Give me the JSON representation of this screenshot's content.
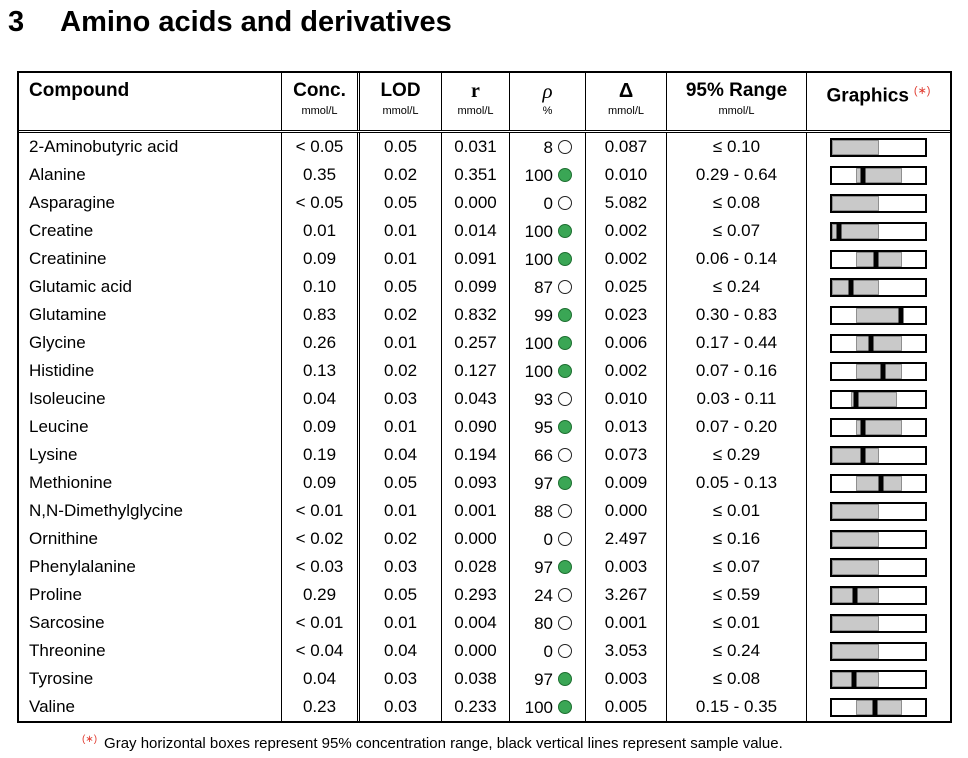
{
  "title": {
    "number": "3",
    "text": "Amino acids and derivatives"
  },
  "colors": {
    "circle_green": "#3aa655",
    "bar_gray": "#c9c9c9",
    "footnote_red": "#e03c31"
  },
  "table": {
    "headers": [
      {
        "label": "Compound",
        "unit": ""
      },
      {
        "label": "Conc.",
        "unit": "mmol/L"
      },
      {
        "label": "LOD",
        "unit": "mmol/L"
      },
      {
        "label": "r",
        "unit": "mmol/L"
      },
      {
        "label": "ρ",
        "unit": "%"
      },
      {
        "label": "Δ",
        "unit": "mmol/L"
      },
      {
        "label": "95% Range",
        "unit": "mmol/L"
      },
      {
        "label": "Graphics",
        "unit": "",
        "marker": "(∗)"
      }
    ],
    "rows": [
      {
        "compound": "2-Aminobutyric acid",
        "conc": "< 0.05",
        "lod": "0.05",
        "r": "0.031",
        "rho": "8",
        "rho_filled": false,
        "delta": "0.087",
        "range": "≤ 0.10",
        "bar": {
          "gray_start": 0,
          "gray_end": 50,
          "line": null
        }
      },
      {
        "compound": "Alanine",
        "conc": "0.35",
        "lod": "0.02",
        "r": "0.351",
        "rho": "100",
        "rho_filled": true,
        "delta": "0.010",
        "range": "0.29 - 0.64",
        "bar": {
          "gray_start": 26,
          "gray_end": 75,
          "line": 33.5
        }
      },
      {
        "compound": "Asparagine",
        "conc": "< 0.05",
        "lod": "0.05",
        "r": "0.000",
        "rho": "0",
        "rho_filled": false,
        "delta": "5.082",
        "range": "≤ 0.08",
        "bar": {
          "gray_start": 0,
          "gray_end": 50,
          "line": null
        }
      },
      {
        "compound": "Creatine",
        "conc": "0.01",
        "lod": "0.01",
        "r": "0.014",
        "rho": "100",
        "rho_filled": true,
        "delta": "0.002",
        "range": "≤ 0.07",
        "bar": {
          "gray_start": 0,
          "gray_end": 50,
          "line": 8
        }
      },
      {
        "compound": "Creatinine",
        "conc": "0.09",
        "lod": "0.01",
        "r": "0.091",
        "rho": "100",
        "rho_filled": true,
        "delta": "0.002",
        "range": "0.06 - 0.14",
        "bar": {
          "gray_start": 26,
          "gray_end": 75,
          "line": 47
        }
      },
      {
        "compound": "Glutamic acid",
        "conc": "0.10",
        "lod": "0.05",
        "r": "0.099",
        "rho": "87",
        "rho_filled": false,
        "delta": "0.025",
        "range": "≤ 0.24",
        "bar": {
          "gray_start": 0,
          "gray_end": 50,
          "line": 20
        }
      },
      {
        "compound": "Glutamine",
        "conc": "0.83",
        "lod": "0.02",
        "r": "0.832",
        "rho": "99",
        "rho_filled": true,
        "delta": "0.023",
        "range": "0.30 - 0.83",
        "bar": {
          "gray_start": 26,
          "gray_end": 75,
          "line": 74.5
        }
      },
      {
        "compound": "Glycine",
        "conc": "0.26",
        "lod": "0.01",
        "r": "0.257",
        "rho": "100",
        "rho_filled": true,
        "delta": "0.006",
        "range": "0.17 - 0.44",
        "bar": {
          "gray_start": 26,
          "gray_end": 75,
          "line": 41.5
        }
      },
      {
        "compound": "Histidine",
        "conc": "0.13",
        "lod": "0.02",
        "r": "0.127",
        "rho": "100",
        "rho_filled": true,
        "delta": "0.002",
        "range": "0.07 - 0.16",
        "bar": {
          "gray_start": 26,
          "gray_end": 75,
          "line": 55
        }
      },
      {
        "compound": "Isoleucine",
        "conc": "0.04",
        "lod": "0.03",
        "r": "0.043",
        "rho": "93",
        "rho_filled": false,
        "delta": "0.010",
        "range": "0.03 - 0.11",
        "bar": {
          "gray_start": 20,
          "gray_end": 70,
          "line": 26
        }
      },
      {
        "compound": "Leucine",
        "conc": "0.09",
        "lod": "0.01",
        "r": "0.090",
        "rho": "95",
        "rho_filled": true,
        "delta": "0.013",
        "range": "0.07 - 0.20",
        "bar": {
          "gray_start": 26,
          "gray_end": 75,
          "line": 33
        }
      },
      {
        "compound": "Lysine",
        "conc": "0.19",
        "lod": "0.04",
        "r": "0.194",
        "rho": "66",
        "rho_filled": false,
        "delta": "0.073",
        "range": "≤ 0.29",
        "bar": {
          "gray_start": 0,
          "gray_end": 50,
          "line": 33
        }
      },
      {
        "compound": "Methionine",
        "conc": "0.09",
        "lod": "0.05",
        "r": "0.093",
        "rho": "97",
        "rho_filled": true,
        "delta": "0.009",
        "range": "0.05 - 0.13",
        "bar": {
          "gray_start": 26,
          "gray_end": 75,
          "line": 53
        }
      },
      {
        "compound": "N,N-Dimethylglycine",
        "conc": "< 0.01",
        "lod": "0.01",
        "r": "0.001",
        "rho": "88",
        "rho_filled": false,
        "delta": "0.000",
        "range": "≤ 0.01",
        "bar": {
          "gray_start": 0,
          "gray_end": 50,
          "line": null
        }
      },
      {
        "compound": "Ornithine",
        "conc": "< 0.02",
        "lod": "0.02",
        "r": "0.000",
        "rho": "0",
        "rho_filled": false,
        "delta": "2.497",
        "range": "≤ 0.16",
        "bar": {
          "gray_start": 0,
          "gray_end": 50,
          "line": null
        }
      },
      {
        "compound": "Phenylalanine",
        "conc": "< 0.03",
        "lod": "0.03",
        "r": "0.028",
        "rho": "97",
        "rho_filled": true,
        "delta": "0.003",
        "range": "≤ 0.07",
        "bar": {
          "gray_start": 0,
          "gray_end": 50,
          "line": null
        }
      },
      {
        "compound": "Proline",
        "conc": "0.29",
        "lod": "0.05",
        "r": "0.293",
        "rho": "24",
        "rho_filled": false,
        "delta": "3.267",
        "range": "≤ 0.59",
        "bar": {
          "gray_start": 0,
          "gray_end": 50,
          "line": 25
        }
      },
      {
        "compound": "Sarcosine",
        "conc": "< 0.01",
        "lod": "0.01",
        "r": "0.004",
        "rho": "80",
        "rho_filled": false,
        "delta": "0.001",
        "range": "≤ 0.01",
        "bar": {
          "gray_start": 0,
          "gray_end": 50,
          "line": null
        }
      },
      {
        "compound": "Threonine",
        "conc": "< 0.04",
        "lod": "0.04",
        "r": "0.000",
        "rho": "0",
        "rho_filled": false,
        "delta": "3.053",
        "range": "≤ 0.24",
        "bar": {
          "gray_start": 0,
          "gray_end": 50,
          "line": null
        }
      },
      {
        "compound": "Tyrosine",
        "conc": "0.04",
        "lod": "0.03",
        "r": "0.038",
        "rho": "97",
        "rho_filled": true,
        "delta": "0.003",
        "range": "≤ 0.08",
        "bar": {
          "gray_start": 0,
          "gray_end": 50,
          "line": 23.5
        }
      },
      {
        "compound": "Valine",
        "conc": "0.23",
        "lod": "0.03",
        "r": "0.233",
        "rho": "100",
        "rho_filled": true,
        "delta": "0.005",
        "range": "0.15 - 0.35",
        "bar": {
          "gray_start": 26,
          "gray_end": 75,
          "line": 46.5
        }
      }
    ]
  },
  "footnote": {
    "marker": "(∗)",
    "text": "Gray horizontal boxes represent 95% concentration range, black vertical lines represent sample value."
  }
}
